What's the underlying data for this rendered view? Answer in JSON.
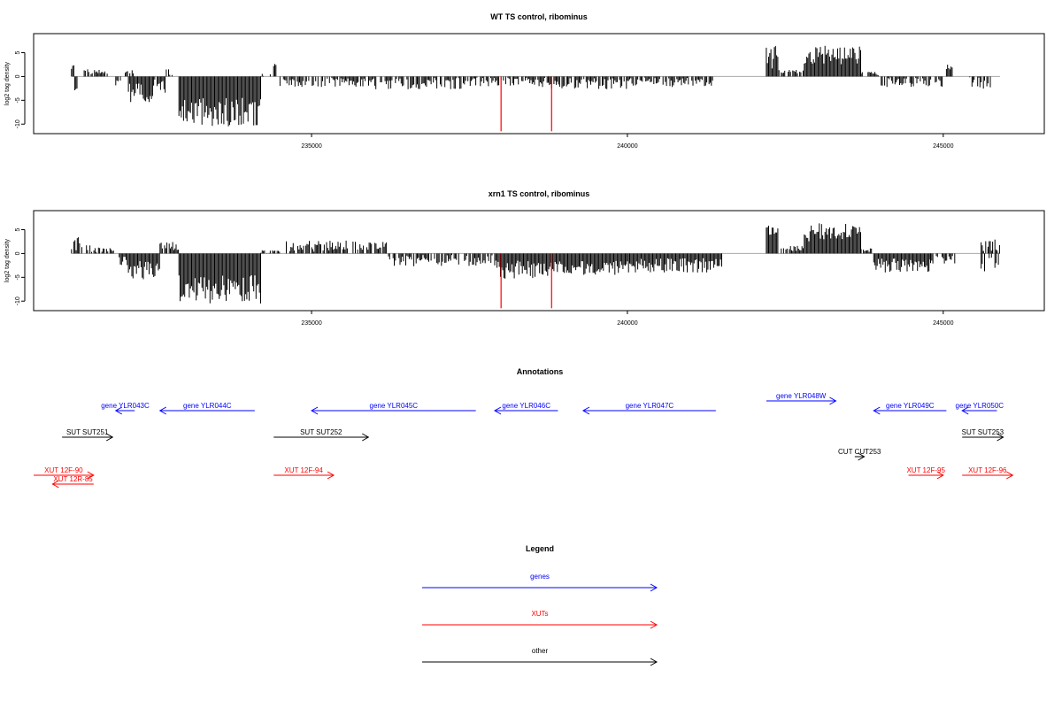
{
  "colors": {
    "gene": "#0000ff",
    "xut": "#ff0000",
    "other": "#000000",
    "tick_red": "#ff0000",
    "baseline": "#aaaaaa"
  },
  "chart_data": [
    {
      "type": "bar",
      "title": "WT TS control, ribominus",
      "ylabel": "log2 tag density",
      "xlim": [
        230600,
        246600
      ],
      "ylim": [
        -12,
        9
      ],
      "xticks": [
        235000,
        240000,
        245000
      ],
      "xtick_labels": [
        "235000",
        "240000",
        "245000"
      ],
      "yticks": [
        -10,
        -5,
        0,
        5
      ],
      "ytick_labels": [
        "-10",
        "-5",
        "0",
        "5"
      ],
      "red_marks": [
        {
          "x": 238000,
          "y": -11.5
        },
        {
          "x": 238800,
          "y": -11.5
        }
      ],
      "segments": [
        [
          231200,
          231250,
          2,
          0.4
        ],
        [
          231250,
          231300,
          -3,
          0.5
        ],
        [
          231400,
          231800,
          1,
          0.5
        ],
        [
          231900,
          232000,
          -1.5,
          1
        ],
        [
          232050,
          232200,
          1,
          0.6
        ],
        [
          232100,
          232500,
          -3.5,
          2
        ],
        [
          232500,
          232700,
          -2,
          1.5
        ],
        [
          232700,
          232800,
          1.2,
          1
        ],
        [
          232900,
          234200,
          -7.5,
          3
        ],
        [
          234200,
          234350,
          0.3,
          0.3
        ],
        [
          234400,
          234450,
          2.5,
          0.3
        ],
        [
          234500,
          236000,
          -1.2,
          1
        ],
        [
          236000,
          237600,
          -1.5,
          1.2
        ],
        [
          237600,
          238800,
          -1.2,
          1
        ],
        [
          238800,
          240000,
          -1.5,
          1.2
        ],
        [
          240000,
          241400,
          -1.2,
          1
        ],
        [
          242200,
          242400,
          4,
          2.5
        ],
        [
          242400,
          242800,
          1,
          0.6
        ],
        [
          242800,
          243700,
          4.5,
          2
        ],
        [
          243700,
          244000,
          0.5,
          0.5
        ],
        [
          244000,
          245000,
          -1.2,
          1
        ],
        [
          245050,
          245150,
          2,
          0.5
        ],
        [
          245400,
          245800,
          -1.5,
          1.5
        ]
      ]
    },
    {
      "type": "bar",
      "title": "xrn1 TS control, ribominus",
      "ylabel": "log2 tag density",
      "xlim": [
        230600,
        246600
      ],
      "ylim": [
        -12,
        9
      ],
      "xticks": [
        235000,
        240000,
        245000
      ],
      "xtick_labels": [
        "235000",
        "240000",
        "245000"
      ],
      "yticks": [
        -10,
        -5,
        0,
        5
      ],
      "ytick_labels": [
        "-10",
        "-5",
        "0",
        "5"
      ],
      "red_marks": [
        {
          "x": 238000,
          "y": -11.5
        },
        {
          "x": 238800,
          "y": -11.5
        }
      ],
      "segments": [
        [
          231200,
          231500,
          2,
          1.5
        ],
        [
          231500,
          231900,
          0.8,
          0.5
        ],
        [
          231900,
          232100,
          -1.5,
          1
        ],
        [
          232100,
          232600,
          -3.5,
          2
        ],
        [
          232600,
          232900,
          1.5,
          1
        ],
        [
          232900,
          234200,
          -7.5,
          3
        ],
        [
          234200,
          234500,
          0.4,
          0.4
        ],
        [
          234600,
          236200,
          1.5,
          1.2
        ],
        [
          236200,
          237900,
          -1.5,
          1.2
        ],
        [
          237900,
          238800,
          -3.5,
          2
        ],
        [
          238800,
          240000,
          -3,
          1.5
        ],
        [
          240000,
          241500,
          -2.5,
          1.5
        ],
        [
          242200,
          242400,
          4,
          2.5
        ],
        [
          242400,
          242800,
          1,
          0.6
        ],
        [
          242800,
          243700,
          4.5,
          2
        ],
        [
          243700,
          243900,
          0.6,
          0.5
        ],
        [
          243900,
          244800,
          -2.5,
          1.5
        ],
        [
          244800,
          245200,
          -1.2,
          1
        ],
        [
          245600,
          245900,
          -1.5,
          2.5
        ],
        [
          245600,
          245900,
          1.5,
          1.5
        ]
      ]
    }
  ],
  "annotations": {
    "title": "Annotations",
    "items": [
      {
        "label": "gene YLR043C",
        "kind": "gene",
        "x1": 232200,
        "x2": 231900,
        "row": 0
      },
      {
        "label": "gene YLR044C",
        "kind": "gene",
        "x1": 234100,
        "x2": 232600,
        "row": 0
      },
      {
        "label": "gene YLR045C",
        "kind": "gene",
        "x1": 237600,
        "x2": 235000,
        "row": 0
      },
      {
        "label": "gene YLR046C",
        "kind": "gene",
        "x1": 238900,
        "x2": 237900,
        "row": 0
      },
      {
        "label": "gene YLR047C",
        "kind": "gene",
        "x1": 241400,
        "x2": 239300,
        "row": 0
      },
      {
        "label": "gene YLR048W",
        "kind": "gene",
        "x1": 242200,
        "x2": 243300,
        "row": -1
      },
      {
        "label": "gene YLR049C",
        "kind": "gene",
        "x1": 245050,
        "x2": 243900,
        "row": 0
      },
      {
        "label": "gene YLR050C",
        "kind": "gene",
        "x1": 245850,
        "x2": 245300,
        "row": 0
      },
      {
        "label": "SUT SUT251",
        "kind": "other",
        "x1": 231050,
        "x2": 231850,
        "row": 1
      },
      {
        "label": "SUT SUT252",
        "kind": "other",
        "x1": 234400,
        "x2": 235900,
        "row": 1
      },
      {
        "label": "CUT CUT253",
        "kind": "other",
        "x1": 243600,
        "x2": 243750,
        "row": 2
      },
      {
        "label": "SUT SUT253",
        "kind": "other",
        "x1": 245300,
        "x2": 245950,
        "row": 1
      },
      {
        "label": "XUT 12F-90",
        "kind": "xut",
        "x1": 230600,
        "x2": 231550,
        "row": 3
      },
      {
        "label": "XUT 12R-85",
        "kind": "xut",
        "x1": 231550,
        "x2": 230900,
        "row": 4
      },
      {
        "label": "XUT 12F-94",
        "kind": "xut",
        "x1": 234400,
        "x2": 235350,
        "row": 3
      },
      {
        "label": "XUT 12F-95",
        "kind": "xut",
        "x1": 244450,
        "x2": 245000,
        "row": 3
      },
      {
        "label": "XUT 12F-96",
        "kind": "xut",
        "x1": 245300,
        "x2": 246100,
        "row": 3
      }
    ]
  },
  "legend": {
    "title": "Legend",
    "items": [
      {
        "label": "genes",
        "kind": "gene"
      },
      {
        "label": "XUTs",
        "kind": "xut"
      },
      {
        "label": "other",
        "kind": "other"
      }
    ]
  }
}
